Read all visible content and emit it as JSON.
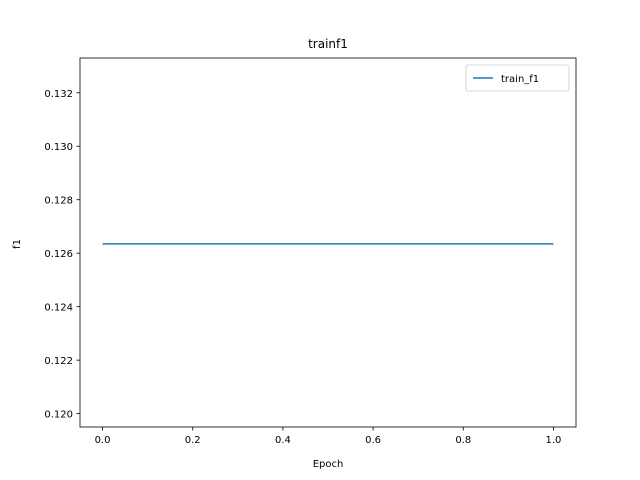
{
  "chart_data": {
    "type": "line",
    "title": "trainf1",
    "xlabel": "Epoch",
    "ylabel": "f1",
    "xlim": [
      -0.05,
      1.05
    ],
    "ylim": [
      0.1195,
      0.1333
    ],
    "xticks": [
      "0.0",
      "0.2",
      "0.4",
      "0.6",
      "0.8",
      "1.0"
    ],
    "yticks": [
      "0.120",
      "0.122",
      "0.124",
      "0.126",
      "0.128",
      "0.130",
      "0.132"
    ],
    "series": [
      {
        "name": "train_f1",
        "color": "#1f77b4",
        "x": [
          0,
          1
        ],
        "y": [
          0.12635,
          0.12635
        ]
      }
    ],
    "legend_position": "top-right",
    "grid": false
  }
}
